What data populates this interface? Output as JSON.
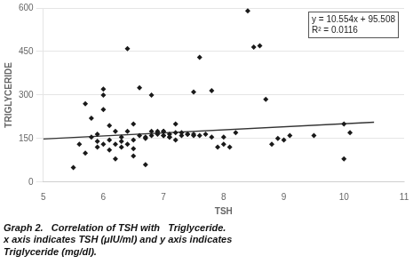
{
  "chart_data": {
    "type": "scatter",
    "title": [
      "Graph 2.   Correlation of TSH with   Triglyceride.",
      "x axis indicates TSH (μIU/ml) and y axis indicates",
      "Triglyceride (mg/dl)."
    ],
    "xlabel": "TSH",
    "ylabel": "TRIGLYCERIDE",
    "annotations": [
      "y = 10.554x + 95.508",
      "R² = 0.0116"
    ],
    "series": [
      {
        "type": "scatter",
        "color": "#1a1a1a",
        "marker": "diamond",
        "x": [
          5.5,
          5.6,
          5.7,
          5.7,
          5.8,
          5.8,
          5.9,
          5.9,
          5.9,
          6.0,
          6.0,
          6.0,
          6.0,
          6.1,
          6.1,
          6.1,
          6.2,
          6.2,
          6.2,
          6.3,
          6.3,
          6.3,
          6.4,
          6.4,
          6.4,
          6.5,
          6.5,
          6.5,
          6.5,
          6.6,
          6.6,
          6.7,
          6.7,
          6.7,
          6.8,
          6.8,
          6.8,
          6.9,
          6.9,
          6.9,
          7.0,
          7.0,
          7.0,
          7.0,
          7.1,
          7.1,
          7.1,
          7.2,
          7.2,
          7.2,
          7.3,
          7.3,
          7.4,
          7.4,
          7.5,
          7.5,
          7.5,
          7.6,
          7.6,
          7.7,
          7.8,
          7.8,
          7.9,
          8.0,
          8.0,
          8.1,
          8.2,
          8.4,
          8.5,
          8.6,
          8.7,
          8.8,
          8.9,
          9.0,
          9.1,
          9.5,
          10.0,
          10.0,
          10.1
        ],
        "values": [
          50,
          130,
          100,
          270,
          155,
          220,
          120,
          140,
          165,
          320,
          300,
          250,
          130,
          110,
          145,
          195,
          175,
          130,
          80,
          140,
          155,
          120,
          460,
          175,
          130,
          115,
          200,
          145,
          90,
          160,
          325,
          150,
          155,
          60,
          175,
          300,
          160,
          165,
          175,
          170,
          160,
          175,
          175,
          160,
          155,
          165,
          155,
          170,
          145,
          200,
          160,
          170,
          165,
          165,
          160,
          165,
          310,
          160,
          430,
          165,
          315,
          155,
          120,
          130,
          155,
          120,
          170,
          590,
          465,
          470,
          285,
          130,
          150,
          145,
          160,
          160,
          200,
          80,
          170
        ]
      },
      {
        "type": "line",
        "color": "#333333",
        "line_style": "solid",
        "x": [
          5.0,
          10.5
        ],
        "values": [
          148.278,
          206.325
        ]
      }
    ],
    "xlim": [
      5,
      11
    ],
    "ylim": [
      0,
      600
    ],
    "xticks": [
      5,
      6,
      7,
      8,
      9,
      10,
      11
    ],
    "yticks": [
      0,
      150,
      300,
      450,
      600
    ],
    "grid": "y"
  }
}
